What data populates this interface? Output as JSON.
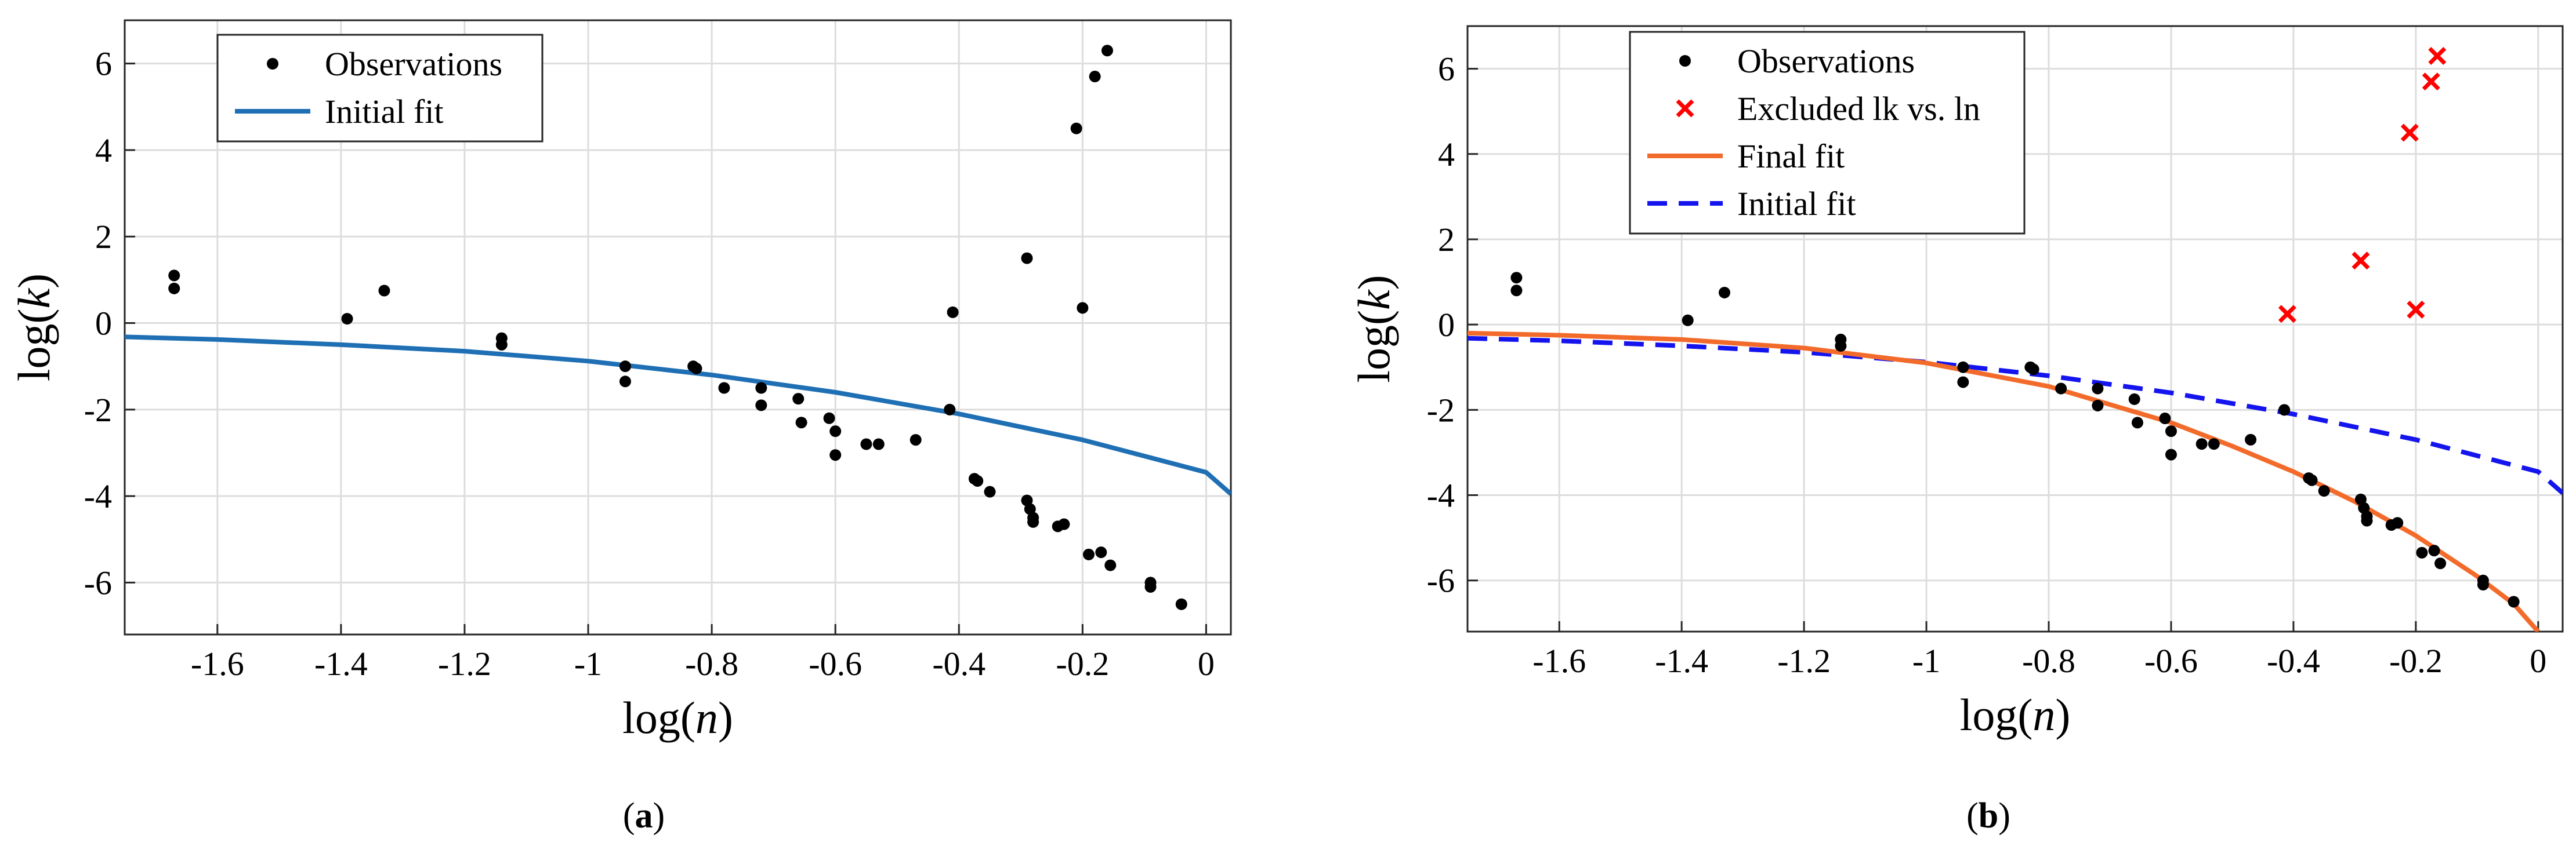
{
  "colors": {
    "observation": "#000000",
    "initial_fit_a": "#1f6fb4",
    "final_fit": "#f36b2b",
    "initial_fit_b": "#1414ee",
    "excluded": "#ff0000",
    "grid": "#dddddd"
  },
  "chart_data": [
    {
      "type": "scatter",
      "panel": "a",
      "caption_letter": "a",
      "caption_open": "(",
      "caption_close": ")",
      "xlabel": "log(n)",
      "ylabel": "log(k)",
      "xlim": [
        -1.75,
        0.04
      ],
      "ylim": [
        -7.2,
        7.0
      ],
      "xticks": [
        -1.6,
        -1.4,
        -1.2,
        -1,
        -0.8,
        -0.6,
        -0.4,
        -0.2,
        0
      ],
      "xtick_labels": [
        "-1.6",
        "-1.4",
        "-1.2",
        "-1",
        "-0.8",
        "-0.6",
        "-0.4",
        "-0.2",
        "0"
      ],
      "yticks": [
        -6,
        -4,
        -2,
        0,
        2,
        4,
        6
      ],
      "ytick_labels": [
        "-6",
        "-4",
        "-2",
        "0",
        "2",
        "4",
        "6"
      ],
      "grid": true,
      "legend_position": "top-left",
      "legend": [
        {
          "label": "Observations",
          "style": "dot"
        },
        {
          "label": "Initial fit",
          "style": "solid-blue"
        }
      ],
      "observations": {
        "x": [
          -1.67,
          -1.67,
          -1.39,
          -1.33,
          -1.14,
          -1.14,
          -0.94,
          -0.94,
          -0.83,
          -0.825,
          -0.78,
          -0.72,
          -0.72,
          -0.66,
          -0.655,
          -0.61,
          -0.6,
          -0.6,
          -0.55,
          -0.53,
          -0.47,
          -0.415,
          -0.41,
          -0.375,
          -0.37,
          -0.35,
          -0.29,
          -0.29,
          -0.285,
          -0.28,
          -0.28,
          -0.24,
          -0.23,
          -0.21,
          -0.2,
          -0.19,
          -0.18,
          -0.17,
          -0.16,
          -0.155,
          -0.09,
          -0.09,
          -0.04
        ],
        "y": [
          1.1,
          0.8,
          0.1,
          0.75,
          -0.35,
          -0.5,
          -1.0,
          -1.35,
          -1.0,
          -1.05,
          -1.5,
          -1.5,
          -1.9,
          -1.75,
          -2.3,
          -2.2,
          -2.5,
          -3.05,
          -2.8,
          -2.8,
          -2.7,
          -2.0,
          0.25,
          -3.6,
          -3.65,
          -3.9,
          -4.1,
          1.5,
          -4.3,
          -4.5,
          -4.6,
          -4.7,
          -4.65,
          4.5,
          0.35,
          -5.35,
          5.7,
          -5.3,
          6.3,
          -5.6,
          -6.0,
          -6.1,
          -6.5
        ]
      },
      "initial_fit": {
        "label": "Initial fit",
        "x": [
          -1.75,
          -1.6,
          -1.4,
          -1.2,
          -1.0,
          -0.8,
          -0.6,
          -0.4,
          -0.2,
          0.0,
          0.04
        ],
        "y": [
          -0.32,
          -0.38,
          -0.5,
          -0.65,
          -0.88,
          -1.2,
          -1.6,
          -2.1,
          -2.7,
          -3.45,
          -3.95
        ]
      }
    },
    {
      "type": "scatter",
      "panel": "b",
      "caption_letter": "b",
      "caption_open": "(",
      "caption_close": ")",
      "xlabel": "log(n)",
      "ylabel": "log(k)",
      "xlim": [
        -1.75,
        0.04
      ],
      "ylim": [
        -7.2,
        7.0
      ],
      "xticks": [
        -1.6,
        -1.4,
        -1.2,
        -1,
        -0.8,
        -0.6,
        -0.4,
        -0.2,
        0
      ],
      "xtick_labels": [
        "-1.6",
        "-1.4",
        "-1.2",
        "-1",
        "-0.8",
        "-0.6",
        "-0.4",
        "-0.2",
        "0"
      ],
      "yticks": [
        -6,
        -4,
        -2,
        0,
        2,
        4,
        6
      ],
      "ytick_labels": [
        "-6",
        "-4",
        "-2",
        "0",
        "2",
        "4",
        "6"
      ],
      "grid": true,
      "legend_position": "top-left",
      "legend": [
        {
          "label": "Observations",
          "style": "dot"
        },
        {
          "label": "Excluded lk vs. ln",
          "style": "red-x"
        },
        {
          "label": "Final fit",
          "style": "solid-orange"
        },
        {
          "label": "Initial fit",
          "style": "dashed-blue"
        }
      ],
      "observations": {
        "x": [
          -1.67,
          -1.67,
          -1.39,
          -1.33,
          -1.14,
          -1.14,
          -0.94,
          -0.94,
          -0.83,
          -0.825,
          -0.78,
          -0.72,
          -0.72,
          -0.66,
          -0.655,
          -0.61,
          -0.6,
          -0.6,
          -0.55,
          -0.53,
          -0.47,
          -0.415,
          -0.375,
          -0.37,
          -0.35,
          -0.29,
          -0.285,
          -0.28,
          -0.28,
          -0.24,
          -0.23,
          -0.19,
          -0.17,
          -0.16,
          -0.09,
          -0.09,
          -0.04
        ],
        "y": [
          1.1,
          0.8,
          0.1,
          0.75,
          -0.35,
          -0.5,
          -1.0,
          -1.35,
          -1.0,
          -1.05,
          -1.5,
          -1.5,
          -1.9,
          -1.75,
          -2.3,
          -2.2,
          -2.5,
          -3.05,
          -2.8,
          -2.8,
          -2.7,
          -2.0,
          -3.6,
          -3.65,
          -3.9,
          -4.1,
          -4.3,
          -4.5,
          -4.6,
          -4.7,
          -4.65,
          -5.35,
          -5.3,
          -5.6,
          -6.0,
          -6.1,
          -6.5
        ]
      },
      "excluded": {
        "label": "Excluded lk vs. ln",
        "x": [
          -0.41,
          -0.29,
          -0.21,
          -0.2,
          -0.175,
          -0.165
        ],
        "y": [
          0.25,
          1.5,
          4.5,
          0.35,
          5.7,
          6.3
        ]
      },
      "final_fit": {
        "label": "Final fit",
        "x": [
          -1.75,
          -1.6,
          -1.4,
          -1.2,
          -1.0,
          -0.8,
          -0.6,
          -0.5,
          -0.4,
          -0.3,
          -0.2,
          -0.1,
          -0.04,
          0.0
        ],
        "y": [
          -0.2,
          -0.25,
          -0.35,
          -0.55,
          -0.9,
          -1.45,
          -2.3,
          -2.85,
          -3.45,
          -4.15,
          -4.95,
          -5.9,
          -6.55,
          -7.2
        ]
      },
      "initial_fit": {
        "label": "Initial fit",
        "x": [
          -1.75,
          -1.6,
          -1.4,
          -1.2,
          -1.0,
          -0.8,
          -0.6,
          -0.4,
          -0.2,
          0.0,
          0.04
        ],
        "y": [
          -0.32,
          -0.38,
          -0.5,
          -0.65,
          -0.88,
          -1.2,
          -1.6,
          -2.1,
          -2.7,
          -3.45,
          -3.95
        ]
      }
    }
  ]
}
